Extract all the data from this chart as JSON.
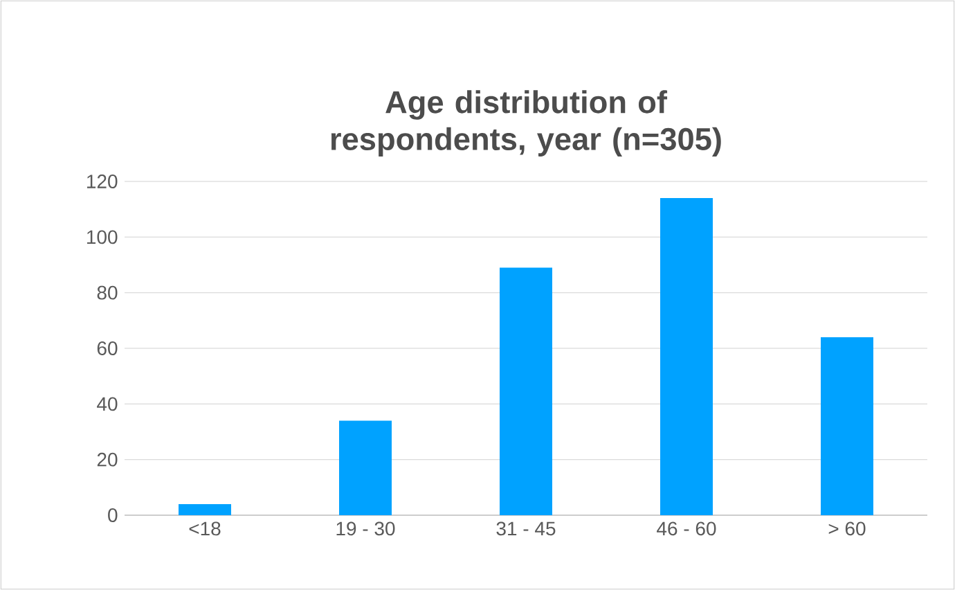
{
  "chart_data": {
    "type": "bar",
    "title": "Age distribution of respondents, year (n=305)",
    "categories": [
      "<18",
      "19 - 30",
      "31 - 45",
      "46 - 60",
      "> 60"
    ],
    "values": [
      4,
      34,
      89,
      114,
      64
    ],
    "color": "#00a2ff",
    "ylim": [
      0,
      120
    ],
    "yticks": [
      0,
      20,
      40,
      60,
      80,
      100,
      120
    ],
    "grid": "y"
  }
}
